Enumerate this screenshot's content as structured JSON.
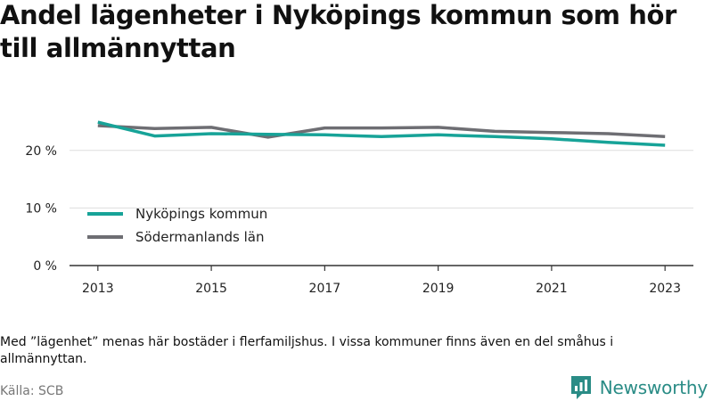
{
  "title": "Andel lägenheter i Nyköpings kommun som hör till allmännyttan",
  "note": "Med ”lägenhet” menas här bostäder i flerfamiljshus. I vissa kommuner finns även en del småhus i allmännyttan.",
  "source": "Källa: SCB",
  "brand": {
    "name": "Newsworthy",
    "logo_icon": "bar-chart-speech-bubble-icon"
  },
  "colors": {
    "nykoping": "#17a398",
    "sodermanland": "#6e6e73",
    "grid": "#dddddd",
    "axis": "#333333",
    "brand": "#2a8c86"
  },
  "chart_data": {
    "type": "line",
    "title": "Andel lägenheter i Nyköpings kommun som hör till allmännyttan",
    "xlabel": "",
    "ylabel": "",
    "x": [
      2013,
      2014,
      2015,
      2016,
      2017,
      2018,
      2019,
      2020,
      2021,
      2022,
      2023
    ],
    "x_ticks": [
      2013,
      2015,
      2017,
      2019,
      2021,
      2023
    ],
    "x_tick_labels": [
      "2013",
      "2015",
      "2017",
      "2019",
      "2021",
      "2023"
    ],
    "xlim": [
      2012.5,
      2023.5
    ],
    "y_ticks": [
      0,
      10,
      20
    ],
    "y_tick_labels": [
      "0 %",
      "10 %",
      "20 %"
    ],
    "ylim": [
      0,
      26
    ],
    "grid": "horizontal",
    "legend_position": "bottom-left",
    "series": [
      {
        "name": "Nyköpings kommun",
        "color": "#17a398",
        "values": [
          24.9,
          22.5,
          22.9,
          22.8,
          22.7,
          22.4,
          22.7,
          22.4,
          22.0,
          21.4,
          20.9
        ]
      },
      {
        "name": "Södermanlands län",
        "color": "#6e6e73",
        "values": [
          24.3,
          23.8,
          24.0,
          22.3,
          23.9,
          23.9,
          24.0,
          23.3,
          23.1,
          22.9,
          22.4
        ]
      }
    ]
  }
}
